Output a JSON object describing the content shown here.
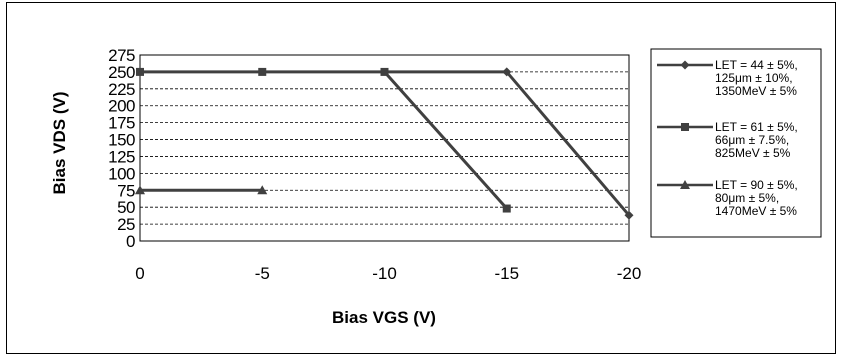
{
  "chart_data": {
    "type": "line",
    "xlabel": "Bias VGS (V)",
    "ylabel": "Bias VDS (V)",
    "xlim": [
      0,
      -20
    ],
    "ylim": [
      0,
      275
    ],
    "x_ticks": [
      "0",
      "-5",
      "-10",
      "-15",
      "-20"
    ],
    "y_ticks": [
      "0",
      "25",
      "50",
      "75",
      "100",
      "125",
      "150",
      "175",
      "200",
      "225",
      "250",
      "275"
    ],
    "grid": "horizontal dashed",
    "legend_position": "right",
    "series": [
      {
        "name_lines": [
          "LET = 44 ± 5%,",
          "125μm ± 10%,",
          "1350MeV ± 5%"
        ],
        "marker": "diamond",
        "color": "#404040",
        "points": [
          [
            -15,
            250
          ],
          [
            -20,
            38
          ]
        ]
      },
      {
        "name_lines": [
          "LET = 61 ± 5%,",
          "66μm ± 7.5%,",
          "825MeV ± 5%"
        ],
        "marker": "square",
        "color": "#404040",
        "points": [
          [
            0,
            250
          ],
          [
            -5,
            250
          ],
          [
            -10,
            250
          ],
          [
            -15,
            48
          ]
        ]
      },
      {
        "name_lines": [
          "LET = 90 ± 5%,",
          "80μm ± 5%,",
          "1470MeV ± 5%"
        ],
        "marker": "triangle",
        "color": "#404040",
        "points": [
          [
            0,
            75
          ],
          [
            -5,
            75
          ]
        ]
      }
    ],
    "extra_segments": [
      {
        "series_index": 0,
        "points": [
          [
            -10,
            250
          ],
          [
            -15,
            250
          ]
        ]
      }
    ]
  }
}
